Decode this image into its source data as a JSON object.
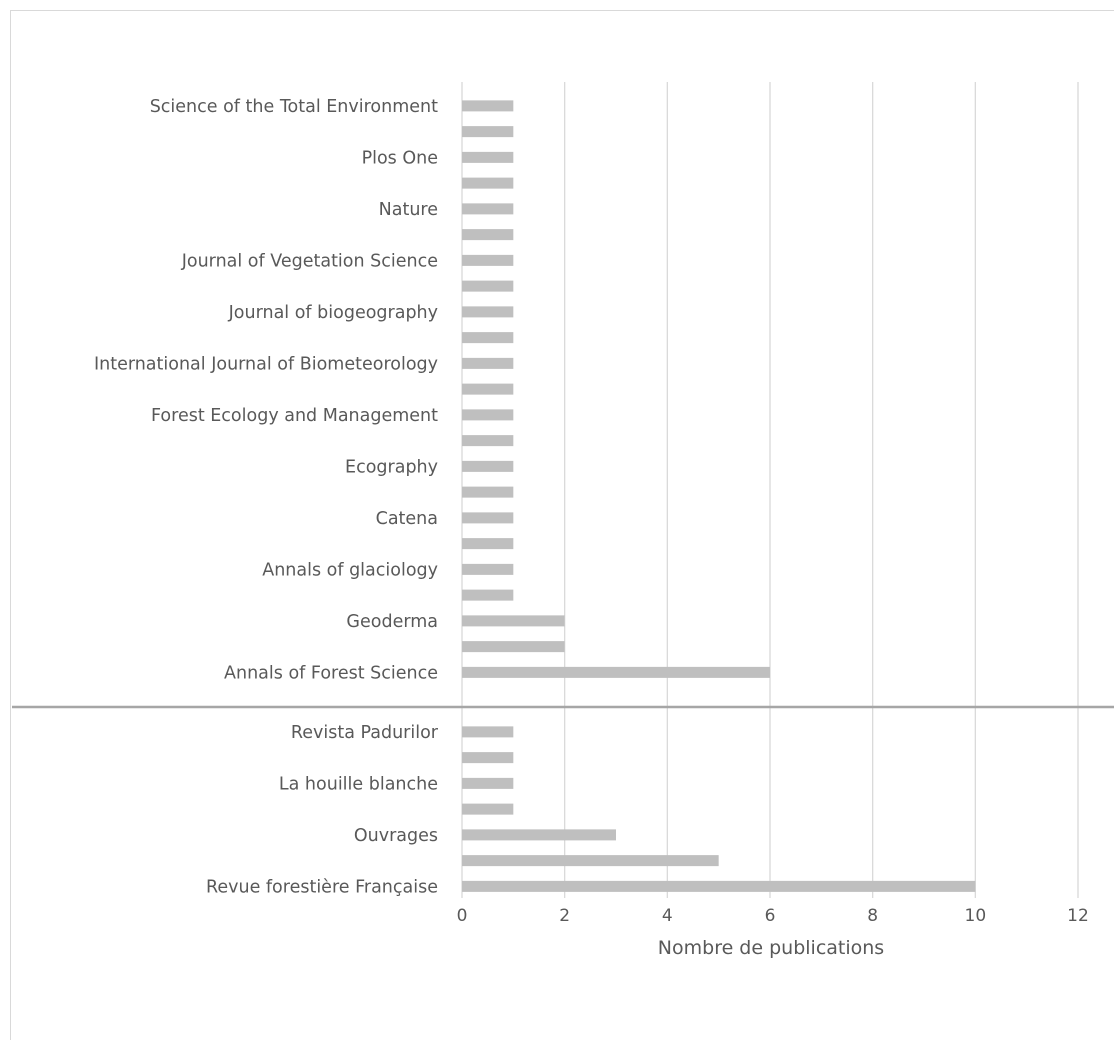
{
  "chart_data": {
    "type": "bar",
    "orientation": "horizontal",
    "title": "",
    "xlabel": "Nombre de publications",
    "ylabel": "",
    "xlim": [
      0,
      12
    ],
    "xticks": [
      "0",
      "2",
      "4",
      "6",
      "8",
      "10",
      "12"
    ],
    "grid": true,
    "legend": "none",
    "bar_color": "#bfbfbf",
    "grid_color": "#d9d9d9",
    "separator_color": "#a6a6a6",
    "label_color": "#595959",
    "groups": [
      {
        "name": "",
        "categories": [
          "Science of the Total Environment",
          "",
          "Plos One ",
          "",
          "Nature",
          "",
          "Journal of Vegetation Science",
          "",
          "Journal of biogeography",
          "",
          "International Journal of Biometeorology",
          "",
          "Forest Ecology and Management",
          "",
          "Ecography",
          "",
          "Catena",
          "",
          "Annals of glaciology",
          "",
          "Geoderma ",
          "",
          "Annals of Forest Science"
        ],
        "values": [
          1,
          1,
          1,
          1,
          1,
          1,
          1,
          1,
          1,
          1,
          1,
          1,
          1,
          1,
          1,
          1,
          1,
          1,
          1,
          1,
          2,
          2,
          6
        ]
      },
      {
        "name": "",
        "categories": [
          "Revista Padurilor ",
          "",
          "La houille blanche",
          "",
          "Ouvrages",
          "",
          "Revue forestière Française"
        ],
        "values": [
          1,
          1,
          1,
          1,
          3,
          5,
          10
        ]
      }
    ]
  }
}
